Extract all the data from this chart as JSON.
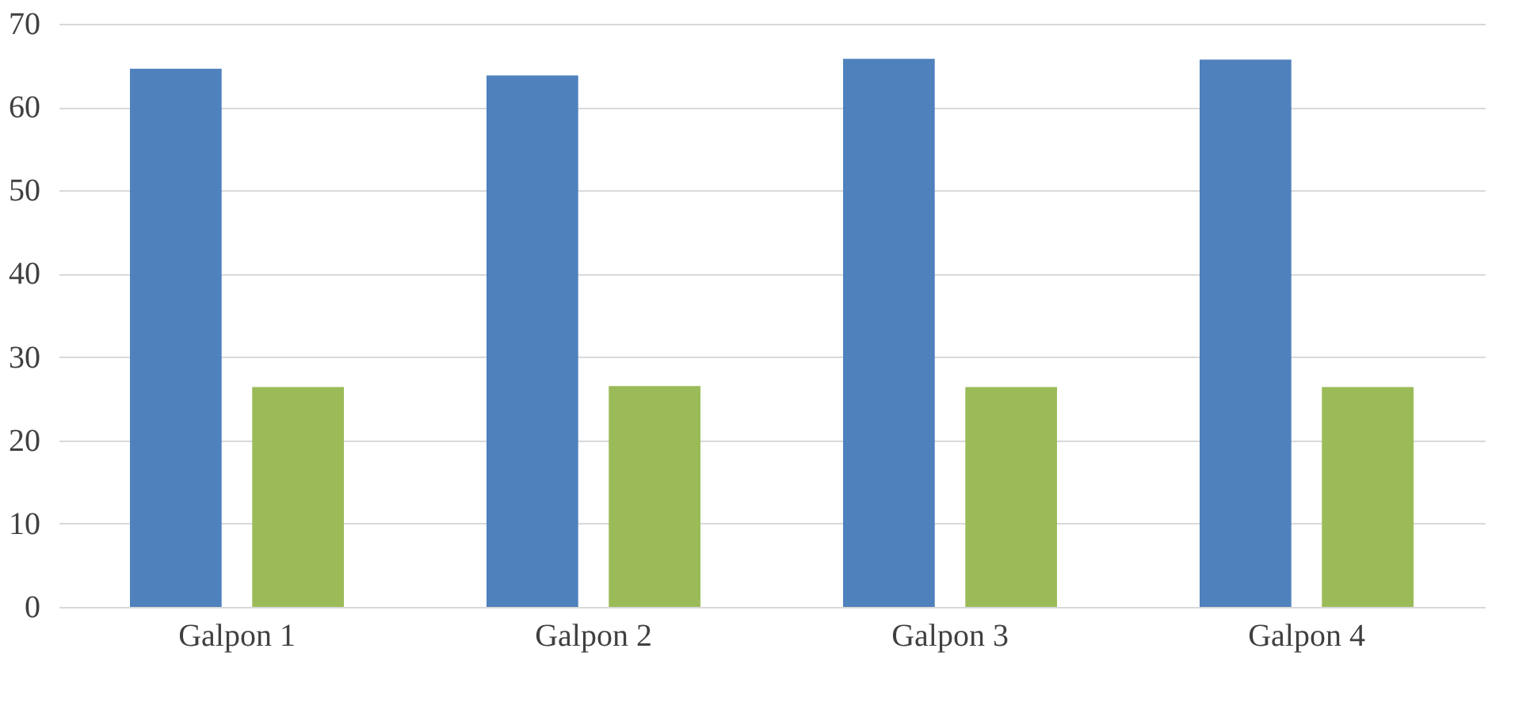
{
  "chart_data": {
    "type": "bar",
    "categories": [
      "Galpon 1",
      "Galpon 2",
      "Galpon 3",
      "Galpon 4"
    ],
    "series": [
      {
        "color": "#4f81bd",
        "values": [
          64.6,
          63.8,
          65.8,
          65.7
        ]
      },
      {
        "color": "#9bbb59",
        "values": [
          26.4,
          26.5,
          26.4,
          26.4
        ]
      }
    ],
    "ylim": [
      0,
      70
    ],
    "yticks": [
      0,
      10,
      20,
      30,
      40,
      50,
      60,
      70
    ],
    "grid": "y",
    "legend": false
  }
}
